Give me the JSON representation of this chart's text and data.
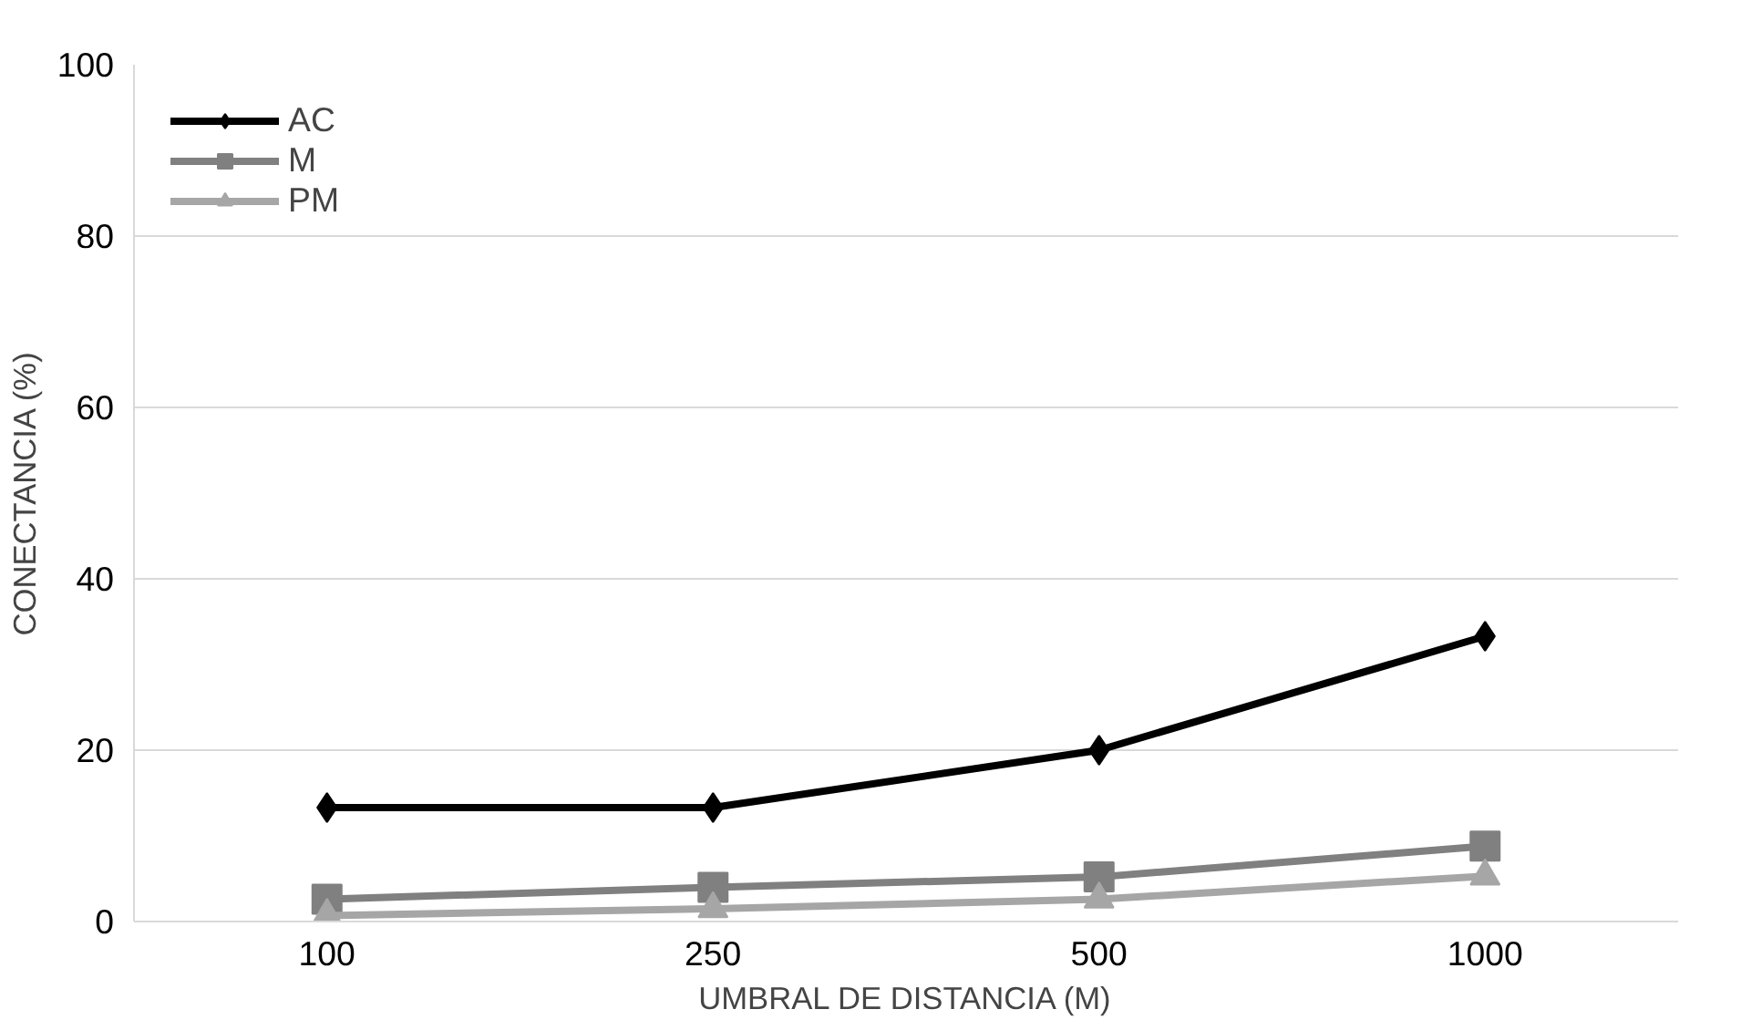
{
  "chart_data": {
    "type": "line",
    "xlabel": "UMBRAL DE DISTANCIA (M)",
    "ylabel": "CONECTANCIA (%)",
    "categories": [
      "100",
      "250",
      "500",
      "1000"
    ],
    "series": [
      {
        "name": "AC",
        "color": "#000000",
        "marker": "diamond",
        "values": [
          13.3,
          13.3,
          20,
          33.3
        ]
      },
      {
        "name": "M",
        "color": "#808080",
        "marker": "square",
        "values": [
          2.6,
          4,
          5.2,
          8.8
        ]
      },
      {
        "name": "PM",
        "color": "#a6a6a6",
        "marker": "triangle",
        "values": [
          0.7,
          1.5,
          2.6,
          5.3
        ]
      }
    ],
    "ylim": [
      0,
      100
    ],
    "yticks": [
      0,
      20,
      40,
      60,
      80,
      100
    ],
    "grid": "y",
    "legend": "top left"
  }
}
